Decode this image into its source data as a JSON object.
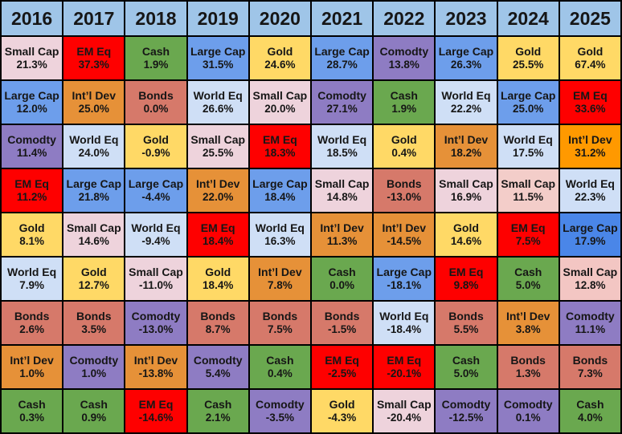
{
  "chart_data": {
    "type": "table",
    "header_bg": "#9fc5e8",
    "palette": {
      "Small Cap": "#eed3dc",
      "EM Eq": "#fe0000",
      "Cash": "#6aa84f",
      "Large Cap": "#6d9eeb",
      "Gold": "#ffd966",
      "Comodty": "#8e7cc3",
      "Int’l Dev": "#e69138",
      "Bonds": "#d6796a",
      "World Eq": "#cfdff6"
    },
    "years": [
      "2016",
      "2017",
      "2018",
      "2019",
      "2020",
      "2021",
      "2022",
      "2023",
      "2024",
      "2025"
    ],
    "columns": [
      {
        "year": "2016",
        "cells": [
          {
            "asset": "Small Cap",
            "return": "21.3%"
          },
          {
            "asset": "Large Cap",
            "return": "12.0%"
          },
          {
            "asset": "Comodty",
            "return": "11.4%"
          },
          {
            "asset": "EM Eq",
            "return": "11.2%"
          },
          {
            "asset": "Gold",
            "return": "8.1%"
          },
          {
            "asset": "World Eq",
            "return": "7.9%"
          },
          {
            "asset": "Bonds",
            "return": "2.6%"
          },
          {
            "asset": "Int’l Dev",
            "return": "1.0%"
          },
          {
            "asset": "Cash",
            "return": "0.3%"
          }
        ]
      },
      {
        "year": "2017",
        "cells": [
          {
            "asset": "EM Eq",
            "return": "37.3%"
          },
          {
            "asset": "Int’l Dev",
            "return": "25.0%"
          },
          {
            "asset": "World Eq",
            "return": "24.0%"
          },
          {
            "asset": "Large Cap",
            "return": "21.8%"
          },
          {
            "asset": "Small Cap",
            "return": "14.6%"
          },
          {
            "asset": "Gold",
            "return": "12.7%"
          },
          {
            "asset": "Bonds",
            "return": "3.5%"
          },
          {
            "asset": "Comodty",
            "return": "1.0%"
          },
          {
            "asset": "Cash",
            "return": "0.9%"
          }
        ]
      },
      {
        "year": "2018",
        "cells": [
          {
            "asset": "Cash",
            "return": "1.9%"
          },
          {
            "asset": "Bonds",
            "return": "0.0%"
          },
          {
            "asset": "Gold",
            "return": "-0.9%"
          },
          {
            "asset": "Large Cap",
            "return": "-4.4%"
          },
          {
            "asset": "World Eq",
            "return": "-9.4%"
          },
          {
            "asset": "Small Cap",
            "return": "-11.0%"
          },
          {
            "asset": "Comodty",
            "return": "-13.0%"
          },
          {
            "asset": "Int’l Dev",
            "return": "-13.8%"
          },
          {
            "asset": "EM Eq",
            "return": "-14.6%"
          }
        ]
      },
      {
        "year": "2019",
        "cells": [
          {
            "asset": "Large Cap",
            "return": "31.5%"
          },
          {
            "asset": "World Eq",
            "return": "26.6%"
          },
          {
            "asset": "Small Cap",
            "return": "25.5%"
          },
          {
            "asset": "Int’l Dev",
            "return": "22.0%"
          },
          {
            "asset": "EM Eq",
            "return": "18.4%"
          },
          {
            "asset": "Gold",
            "return": "18.4%"
          },
          {
            "asset": "Bonds",
            "return": "8.7%"
          },
          {
            "asset": "Comodty",
            "return": "5.4%"
          },
          {
            "asset": "Cash",
            "return": "2.1%"
          }
        ]
      },
      {
        "year": "2020",
        "cells": [
          {
            "asset": "Gold",
            "return": "24.6%"
          },
          {
            "asset": "Small Cap",
            "return": "20.0%"
          },
          {
            "asset": "EM Eq",
            "return": "18.3%"
          },
          {
            "asset": "Large Cap",
            "return": "18.4%"
          },
          {
            "asset": "World Eq",
            "return": "16.3%"
          },
          {
            "asset": "Int’l Dev",
            "return": "7.8%"
          },
          {
            "asset": "Bonds",
            "return": "7.5%"
          },
          {
            "asset": "Cash",
            "return": "0.4%"
          },
          {
            "asset": "Comodty",
            "return": "-3.5%"
          }
        ]
      },
      {
        "year": "2021",
        "cells": [
          {
            "asset": "Large Cap",
            "return": "28.7%"
          },
          {
            "asset": "Comodty",
            "return": "27.1%"
          },
          {
            "asset": "World Eq",
            "return": "18.5%"
          },
          {
            "asset": "Small Cap",
            "return": "14.8%"
          },
          {
            "asset": "Int’l Dev",
            "return": "11.3%"
          },
          {
            "asset": "Cash",
            "return": "0.0%"
          },
          {
            "asset": "Bonds",
            "return": "-1.5%"
          },
          {
            "asset": "EM Eq",
            "return": "-2.5%"
          },
          {
            "asset": "Gold",
            "return": "-4.3%"
          }
        ]
      },
      {
        "year": "2022",
        "cells": [
          {
            "asset": "Comodty",
            "return": "13.8%"
          },
          {
            "asset": "Cash",
            "return": "1.9%"
          },
          {
            "asset": "Gold",
            "return": "0.4%"
          },
          {
            "asset": "Bonds",
            "return": "-13.0%"
          },
          {
            "asset": "Int’l Dev",
            "return": "-14.5%"
          },
          {
            "asset": "Large Cap",
            "return": "-18.1%"
          },
          {
            "asset": "World Eq",
            "return": "-18.4%"
          },
          {
            "asset": "EM Eq",
            "return": "-20.1%"
          },
          {
            "asset": "Small Cap",
            "return": "-20.4%"
          }
        ]
      },
      {
        "year": "2023",
        "cells": [
          {
            "asset": "Large Cap",
            "return": "26.3%"
          },
          {
            "asset": "World Eq",
            "return": "22.2%"
          },
          {
            "asset": "Int’l Dev",
            "return": "18.2%"
          },
          {
            "asset": "Small Cap",
            "return": "16.9%"
          },
          {
            "asset": "Gold",
            "return": "14.6%"
          },
          {
            "asset": "EM Eq",
            "return": "9.8%"
          },
          {
            "asset": "Bonds",
            "return": "5.5%"
          },
          {
            "asset": "Cash",
            "return": "5.0%"
          },
          {
            "asset": "Comodty",
            "return": "-12.5%"
          }
        ]
      },
      {
        "year": "2024",
        "cells": [
          {
            "asset": "Gold",
            "return": "25.5%"
          },
          {
            "asset": "Large Cap",
            "return": "25.0%"
          },
          {
            "asset": "World Eq",
            "return": "17.5%"
          },
          {
            "asset": "Small Cap",
            "return": "11.5%",
            "color": "#f3cdc9"
          },
          {
            "asset": "EM Eq",
            "return": "7.5%"
          },
          {
            "asset": "Cash",
            "return": "5.0%"
          },
          {
            "asset": "Int’l Dev",
            "return": "3.8%"
          },
          {
            "asset": "Bonds",
            "return": "1.3%"
          },
          {
            "asset": "Comodty",
            "return": "0.1%"
          }
        ]
      },
      {
        "year": "2025",
        "cells": [
          {
            "asset": "Gold",
            "return": "67.4%"
          },
          {
            "asset": "EM Eq",
            "return": "33.6%"
          },
          {
            "asset": "Int’l Dev",
            "return": "31.2%",
            "color": "#ff9900"
          },
          {
            "asset": "World Eq",
            "return": "22.3%"
          },
          {
            "asset": "Large Cap",
            "return": "17.9%",
            "color": "#4a86e8"
          },
          {
            "asset": "Small Cap",
            "return": "12.8%",
            "color": "#f3c6c3"
          },
          {
            "asset": "Comodty",
            "return": "11.1%"
          },
          {
            "asset": "Bonds",
            "return": "7.3%"
          },
          {
            "asset": "Cash",
            "return": "4.0%"
          }
        ]
      }
    ]
  }
}
